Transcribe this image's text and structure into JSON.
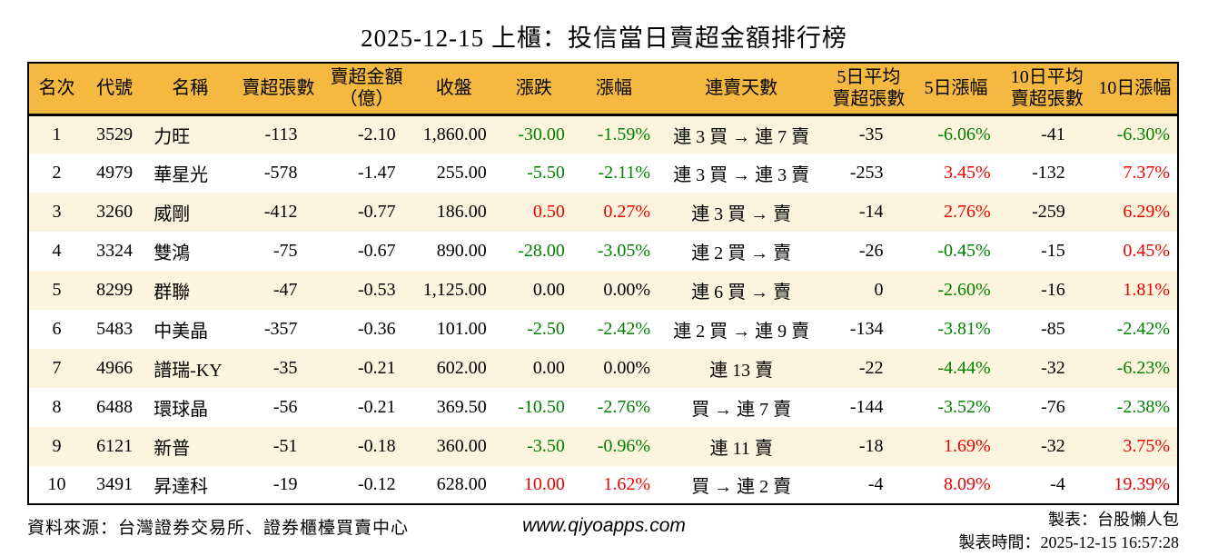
{
  "title": "2025-12-15 上櫃：投信當日賣超金額排行榜",
  "colors": {
    "header_bg": "#F5B942",
    "stripe_bg": "#FCF4DC",
    "up": "#EE0000",
    "down": "#008000",
    "flat": "#000000"
  },
  "chart_data": {
    "type": "table",
    "title": "2025-12-15 上櫃：投信當日賣超金額排行榜",
    "columns": [
      "名次",
      "代號",
      "名稱",
      "賣超張數",
      "賣超金額\n（億）",
      "收盤",
      "漲跌",
      "漲幅",
      "連賣天數",
      "5日平均\n賣超張數",
      "5日漲幅",
      "10日平均\n賣超張數",
      "10日漲幅"
    ],
    "rows": [
      {
        "rank": "1",
        "code": "3529",
        "name": "力旺",
        "sell_lots": "-113",
        "sell_amount": "-2.10",
        "close": "1,860.00",
        "change": "-30.00",
        "change_pct": "-1.59%",
        "change_dir": "down",
        "streak": "連 3 買 → 連 7 賣",
        "avg5": "-35",
        "pct5": "-6.06%",
        "pct5_dir": "down",
        "avg10": "-41",
        "pct10": "-6.30%",
        "pct10_dir": "down"
      },
      {
        "rank": "2",
        "code": "4979",
        "name": "華星光",
        "sell_lots": "-578",
        "sell_amount": "-1.47",
        "close": "255.00",
        "change": "-5.50",
        "change_pct": "-2.11%",
        "change_dir": "down",
        "streak": "連 3 買 → 連 3 賣",
        "avg5": "-253",
        "pct5": "3.45%",
        "pct5_dir": "up",
        "avg10": "-132",
        "pct10": "7.37%",
        "pct10_dir": "up"
      },
      {
        "rank": "3",
        "code": "3260",
        "name": "威剛",
        "sell_lots": "-412",
        "sell_amount": "-0.77",
        "close": "186.00",
        "change": "0.50",
        "change_pct": "0.27%",
        "change_dir": "up",
        "streak": "連 3 買 → 賣",
        "avg5": "-14",
        "pct5": "2.76%",
        "pct5_dir": "up",
        "avg10": "-259",
        "pct10": "6.29%",
        "pct10_dir": "up"
      },
      {
        "rank": "4",
        "code": "3324",
        "name": "雙鴻",
        "sell_lots": "-75",
        "sell_amount": "-0.67",
        "close": "890.00",
        "change": "-28.00",
        "change_pct": "-3.05%",
        "change_dir": "down",
        "streak": "連 2 買 → 賣",
        "avg5": "-26",
        "pct5": "-0.45%",
        "pct5_dir": "down",
        "avg10": "-15",
        "pct10": "0.45%",
        "pct10_dir": "up"
      },
      {
        "rank": "5",
        "code": "8299",
        "name": "群聯",
        "sell_lots": "-47",
        "sell_amount": "-0.53",
        "close": "1,125.00",
        "change": "0.00",
        "change_pct": "0.00%",
        "change_dir": "flat",
        "streak": "連 6 買 → 賣",
        "avg5": "0",
        "pct5": "-2.60%",
        "pct5_dir": "down",
        "avg10": "-16",
        "pct10": "1.81%",
        "pct10_dir": "up"
      },
      {
        "rank": "6",
        "code": "5483",
        "name": "中美晶",
        "sell_lots": "-357",
        "sell_amount": "-0.36",
        "close": "101.00",
        "change": "-2.50",
        "change_pct": "-2.42%",
        "change_dir": "down",
        "streak": "連 2 買 → 連 9 賣",
        "avg5": "-134",
        "pct5": "-3.81%",
        "pct5_dir": "down",
        "avg10": "-85",
        "pct10": "-2.42%",
        "pct10_dir": "down"
      },
      {
        "rank": "7",
        "code": "4966",
        "name": "譜瑞-KY",
        "sell_lots": "-35",
        "sell_amount": "-0.21",
        "close": "602.00",
        "change": "0.00",
        "change_pct": "0.00%",
        "change_dir": "flat",
        "streak": "連 13 賣",
        "avg5": "-22",
        "pct5": "-4.44%",
        "pct5_dir": "down",
        "avg10": "-32",
        "pct10": "-6.23%",
        "pct10_dir": "down"
      },
      {
        "rank": "8",
        "code": "6488",
        "name": "環球晶",
        "sell_lots": "-56",
        "sell_amount": "-0.21",
        "close": "369.50",
        "change": "-10.50",
        "change_pct": "-2.76%",
        "change_dir": "down",
        "streak": "買 → 連 7 賣",
        "avg5": "-144",
        "pct5": "-3.52%",
        "pct5_dir": "down",
        "avg10": "-76",
        "pct10": "-2.38%",
        "pct10_dir": "down"
      },
      {
        "rank": "9",
        "code": "6121",
        "name": "新普",
        "sell_lots": "-51",
        "sell_amount": "-0.18",
        "close": "360.00",
        "change": "-3.50",
        "change_pct": "-0.96%",
        "change_dir": "down",
        "streak": "連 11 賣",
        "avg5": "-18",
        "pct5": "1.69%",
        "pct5_dir": "up",
        "avg10": "-32",
        "pct10": "3.75%",
        "pct10_dir": "up"
      },
      {
        "rank": "10",
        "code": "3491",
        "name": "昇達科",
        "sell_lots": "-19",
        "sell_amount": "-0.12",
        "close": "628.00",
        "change": "10.00",
        "change_pct": "1.62%",
        "change_dir": "up",
        "streak": "買 → 連 2 賣",
        "avg5": "-4",
        "pct5": "8.09%",
        "pct5_dir": "up",
        "avg10": "-4",
        "pct10": "19.39%",
        "pct10_dir": "up"
      }
    ]
  },
  "footer": {
    "source": "資料來源：台灣證券交易所、證券櫃檯買賣中心",
    "website": "www.qiyoapps.com",
    "author": "製表：台股懶人包",
    "generated": "製表時間：2025-12-15 16:57:28"
  }
}
